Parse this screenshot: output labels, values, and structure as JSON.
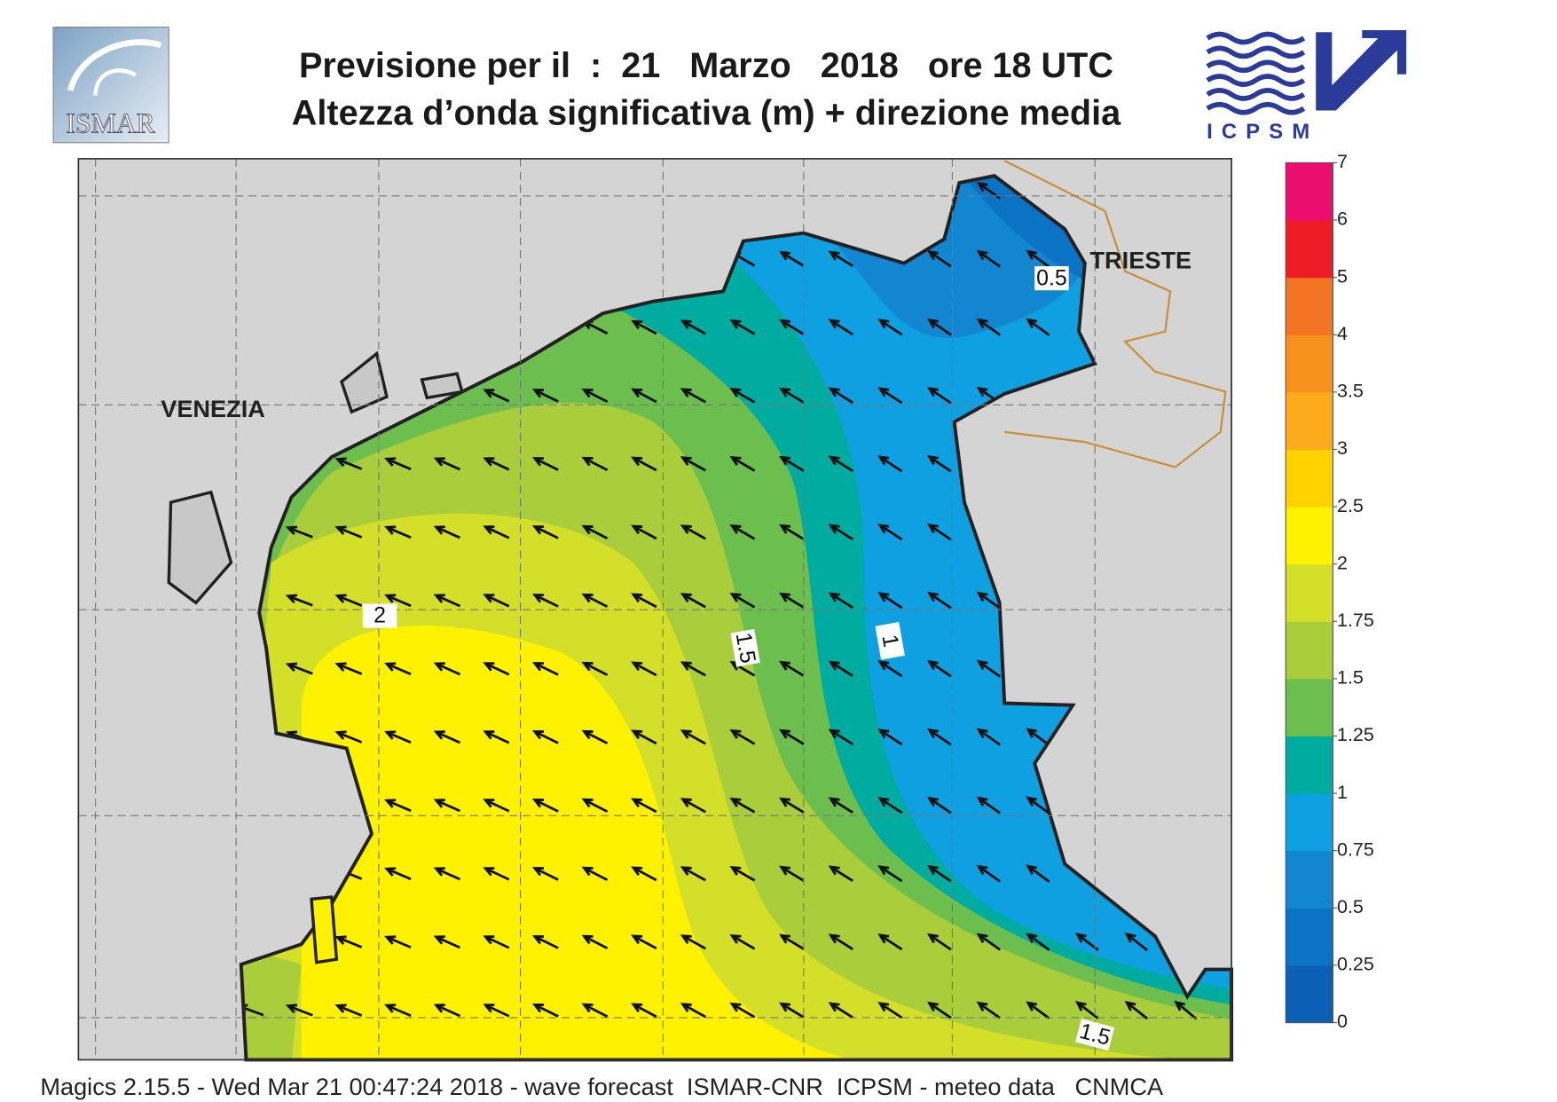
{
  "header": {
    "title_line1": "Previsione per il  :  21   Marzo   2018   ore 18 UTC",
    "title_line2": "Altezza d’onda significativa (m) + direzione media",
    "logo_left": "ISMAR",
    "logo_right": "ICPSM"
  },
  "map": {
    "places": [
      "VENEZIA",
      "TRIESTE"
    ],
    "contour_labels": [
      0.5,
      1,
      1.5,
      2,
      1.5
    ]
  },
  "legend": {
    "ticks": [
      0,
      0.25,
      0.5,
      0.75,
      1,
      1.25,
      1.5,
      1.75,
      2,
      2.5,
      3,
      3.5,
      4,
      5,
      6,
      7
    ],
    "colors": [
      "#0b5fb5",
      "#0a73c4",
      "#1386d2",
      "#0ea0e0",
      "#00aba0",
      "#6cbf4f",
      "#a9cd3b",
      "#d4df2a",
      "#fff200",
      "#ffd200",
      "#fcab1c",
      "#f7931d",
      "#f37422",
      "#ee1c25",
      "#ec0e6e"
    ]
  },
  "footer": "Magics 2.15.5 - Wed Mar 21 00:47:24 2018 - wave forecast  ISMAR-CNR  ICPSM - meteo data   CNMCA"
}
